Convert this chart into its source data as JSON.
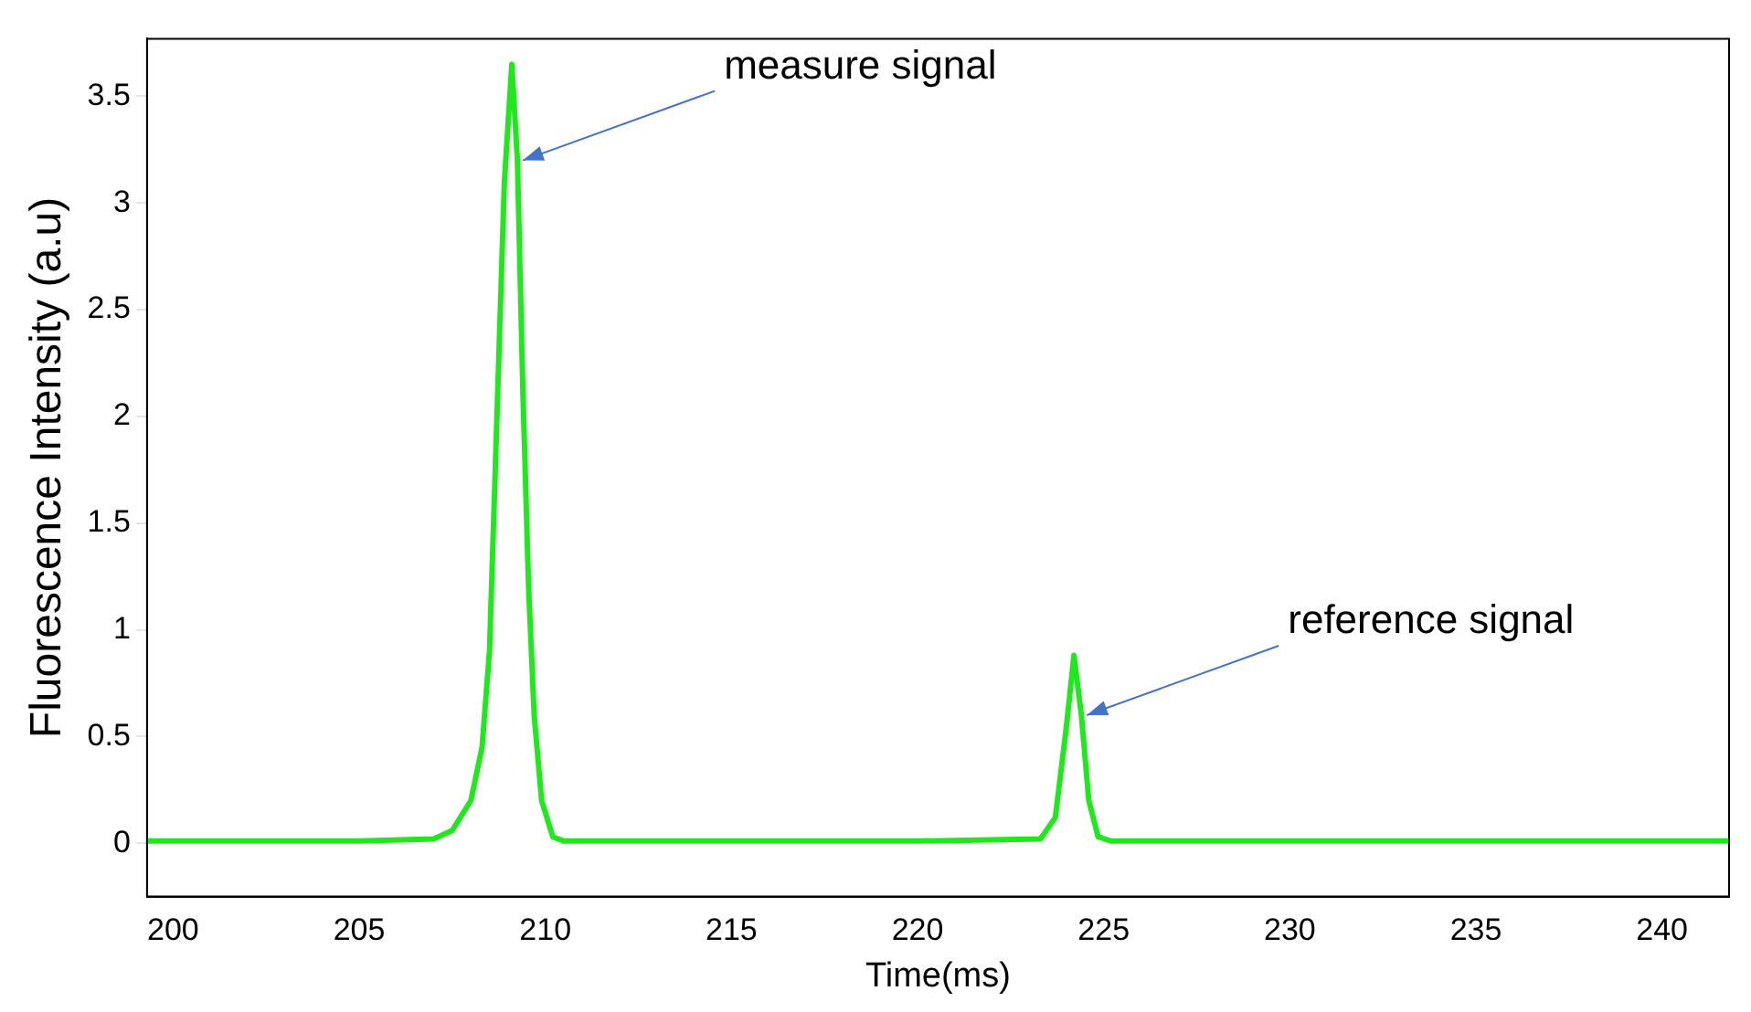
{
  "chart_data": {
    "type": "line",
    "xlabel": "Time(ms)",
    "ylabel": "Fluorescence Intensity (a.u)",
    "annotations": [
      {
        "text": "measure signal",
        "x": 209.25,
        "y": 3.2
      },
      {
        "text": "reference signal",
        "x": 224.4,
        "y": 0.6
      }
    ],
    "x": [
      199.3,
      205,
      207,
      207.5,
      208,
      208.3,
      208.5,
      208.7,
      208.9,
      209.1,
      209.25,
      209.4,
      209.55,
      209.7,
      209.9,
      210.2,
      210.5,
      215,
      220,
      223.3,
      223.7,
      224.0,
      224.2,
      224.4,
      224.6,
      224.85,
      225.2,
      230,
      235,
      241.8
    ],
    "series": [
      {
        "color": "#22e61e",
        "values": [
          0.01,
          0.01,
          0.02,
          0.06,
          0.2,
          0.45,
          0.9,
          2.0,
          3.1,
          3.65,
          3.2,
          2.1,
          1.2,
          0.6,
          0.2,
          0.03,
          0.01,
          0.01,
          0.01,
          0.02,
          0.12,
          0.55,
          0.88,
          0.6,
          0.2,
          0.03,
          0.01,
          0.01,
          0.01,
          0.01
        ]
      }
    ],
    "xlim": [
      199.3,
      241.8
    ],
    "xticks": [
      200,
      205,
      210,
      215,
      220,
      225,
      230,
      235,
      240
    ],
    "ylim": [
      -0.25,
      3.77
    ],
    "yticks": [
      0,
      0.5,
      1,
      1.5,
      2,
      2.5,
      3,
      3.5
    ],
    "grid": false,
    "legend": false,
    "marker": "none",
    "line_style": "solid"
  }
}
